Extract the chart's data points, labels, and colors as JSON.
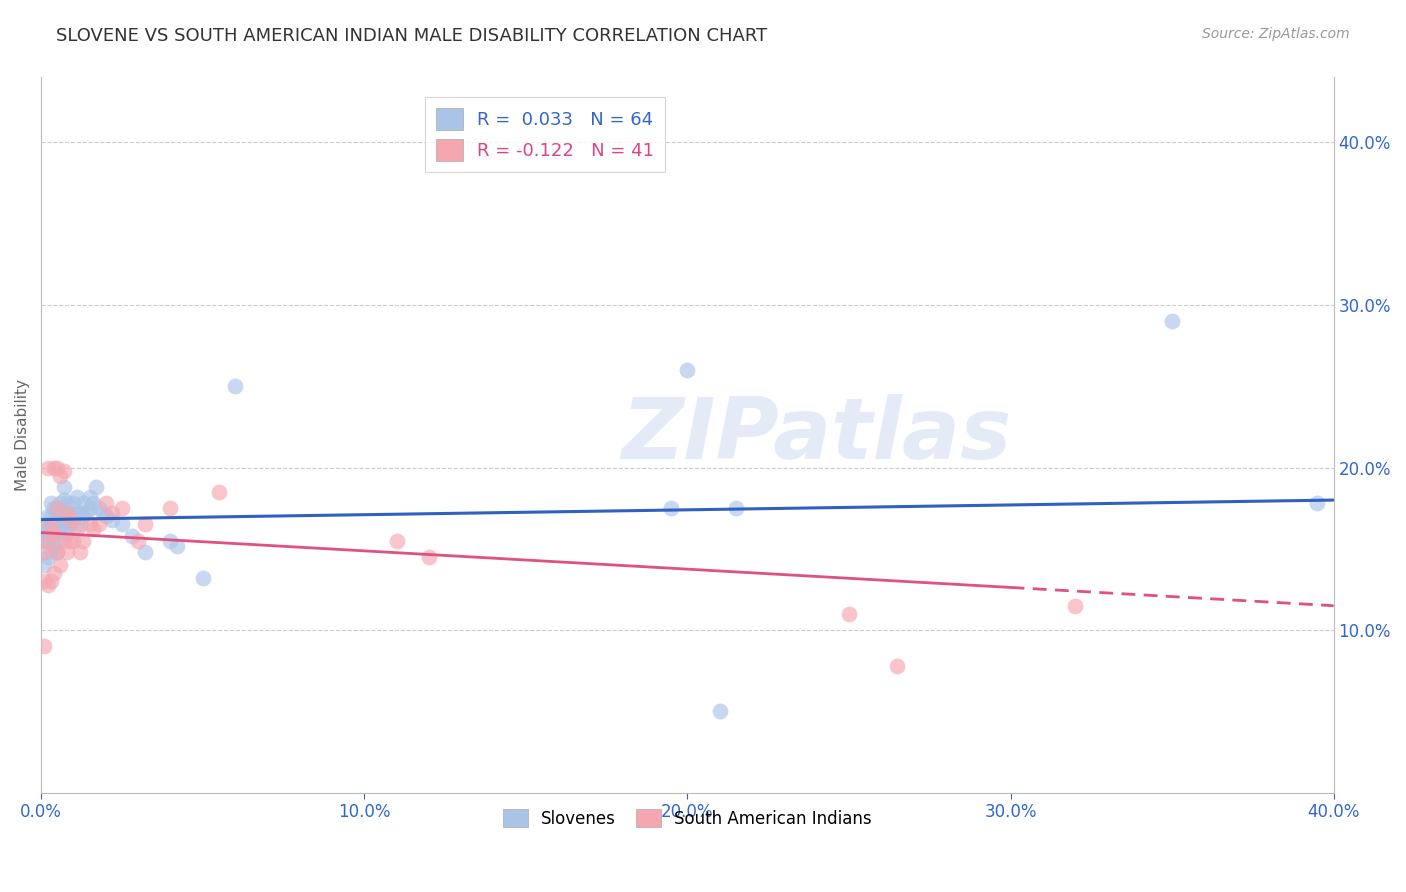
{
  "title": "SLOVENE VS SOUTH AMERICAN INDIAN MALE DISABILITY CORRELATION CHART",
  "source": "Source: ZipAtlas.com",
  "ylabel": "Male Disability",
  "xlim": [
    0.0,
    0.4
  ],
  "ylim": [
    0.0,
    0.44
  ],
  "xticks": [
    0.0,
    0.1,
    0.2,
    0.3,
    0.4
  ],
  "yticks": [
    0.1,
    0.2,
    0.3,
    0.4
  ],
  "xticklabels": [
    "0.0%",
    "10.0%",
    "20.0%",
    "30.0%",
    "40.0%"
  ],
  "yticklabels": [
    "10.0%",
    "20.0%",
    "30.0%",
    "40.0%"
  ],
  "legend_labels": [
    "Slovenes",
    "South American Indians"
  ],
  "r_slovene": 0.033,
  "n_slovene": 64,
  "r_sai": -0.122,
  "n_sai": 41,
  "blue_color": "#aac4e8",
  "pink_color": "#f4a7b0",
  "line_blue": "#3060c0",
  "line_pink": "#e05080",
  "watermark": "ZIPatlas",
  "blue_line_x0": 0.0,
  "blue_line_y0": 0.168,
  "blue_line_x1": 0.4,
  "blue_line_y1": 0.18,
  "pink_line_x0": 0.0,
  "pink_line_y0": 0.16,
  "pink_line_x1": 0.4,
  "pink_line_y1": 0.115,
  "slovene_x": [
    0.001,
    0.001,
    0.001,
    0.001,
    0.002,
    0.002,
    0.002,
    0.002,
    0.003,
    0.003,
    0.003,
    0.003,
    0.003,
    0.004,
    0.004,
    0.004,
    0.004,
    0.005,
    0.005,
    0.005,
    0.005,
    0.005,
    0.006,
    0.006,
    0.006,
    0.007,
    0.007,
    0.007,
    0.007,
    0.008,
    0.008,
    0.008,
    0.009,
    0.009,
    0.01,
    0.01,
    0.011,
    0.011,
    0.012,
    0.012,
    0.013,
    0.013,
    0.014,
    0.015,
    0.015,
    0.016,
    0.017,
    0.018,
    0.019,
    0.02,
    0.022,
    0.025,
    0.028,
    0.032,
    0.04,
    0.042,
    0.05,
    0.06,
    0.195,
    0.2,
    0.21,
    0.215,
    0.35,
    0.395
  ],
  "slovene_y": [
    0.14,
    0.155,
    0.16,
    0.165,
    0.145,
    0.155,
    0.165,
    0.17,
    0.148,
    0.158,
    0.165,
    0.17,
    0.178,
    0.152,
    0.16,
    0.168,
    0.175,
    0.148,
    0.155,
    0.162,
    0.168,
    0.175,
    0.16,
    0.168,
    0.178,
    0.165,
    0.172,
    0.18,
    0.188,
    0.16,
    0.17,
    0.178,
    0.165,
    0.172,
    0.168,
    0.178,
    0.172,
    0.182,
    0.165,
    0.172,
    0.17,
    0.178,
    0.172,
    0.175,
    0.182,
    0.178,
    0.188,
    0.175,
    0.172,
    0.17,
    0.168,
    0.165,
    0.158,
    0.148,
    0.155,
    0.152,
    0.132,
    0.25,
    0.175,
    0.26,
    0.05,
    0.175,
    0.29,
    0.178
  ],
  "sai_x": [
    0.001,
    0.001,
    0.001,
    0.002,
    0.002,
    0.002,
    0.003,
    0.003,
    0.004,
    0.004,
    0.004,
    0.005,
    0.005,
    0.005,
    0.006,
    0.006,
    0.007,
    0.007,
    0.008,
    0.008,
    0.009,
    0.009,
    0.01,
    0.011,
    0.012,
    0.013,
    0.015,
    0.016,
    0.018,
    0.02,
    0.022,
    0.025,
    0.03,
    0.032,
    0.04,
    0.055,
    0.11,
    0.12,
    0.25,
    0.265,
    0.32
  ],
  "sai_y": [
    0.09,
    0.13,
    0.148,
    0.128,
    0.155,
    0.2,
    0.13,
    0.165,
    0.135,
    0.16,
    0.2,
    0.148,
    0.175,
    0.2,
    0.14,
    0.195,
    0.155,
    0.198,
    0.148,
    0.172,
    0.155,
    0.168,
    0.155,
    0.162,
    0.148,
    0.155,
    0.165,
    0.162,
    0.165,
    0.178,
    0.172,
    0.175,
    0.155,
    0.165,
    0.175,
    0.185,
    0.155,
    0.145,
    0.11,
    0.078,
    0.115
  ]
}
